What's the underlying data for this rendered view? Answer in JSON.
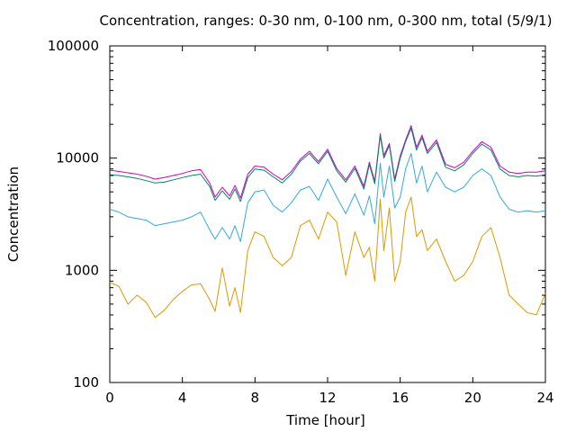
{
  "chart_data": {
    "type": "line",
    "title": "Concentration, ranges: 0-30 nm, 0-100 nm, 0-300 nm, total (5/9/1)",
    "xlabel": "Time [hour]",
    "ylabel": "Concentration",
    "xlim": [
      0,
      24
    ],
    "ylim": [
      100,
      100000
    ],
    "yscale": "log",
    "grid": false,
    "legend": "none",
    "xticks": [
      0,
      4,
      8,
      12,
      16,
      20,
      24
    ],
    "xtick_labels": [
      "0",
      "4",
      "8",
      "12",
      "16",
      "20",
      "24"
    ],
    "yticks": [
      100,
      1000,
      10000,
      100000
    ],
    "ytick_labels": [
      "100",
      "1000",
      "10000",
      "100000"
    ],
    "x": [
      0,
      0.5,
      1,
      1.5,
      2,
      2.5,
      3,
      3.5,
      4,
      4.5,
      5,
      5.5,
      5.8,
      6.2,
      6.6,
      6.9,
      7.2,
      7.6,
      8,
      8.5,
      9,
      9.5,
      10,
      10.5,
      11,
      11.5,
      12,
      12.5,
      13,
      13.5,
      14,
      14.3,
      14.6,
      14.9,
      15.1,
      15.4,
      15.7,
      16,
      16.3,
      16.6,
      16.9,
      17.2,
      17.5,
      18,
      18.5,
      19,
      19.5,
      20,
      20.5,
      21,
      21.5,
      22,
      22.5,
      23,
      23.5,
      24
    ],
    "series": [
      {
        "color": "#cc00cc",
        "values": [
          7800,
          7600,
          7400,
          7200,
          6900,
          6500,
          6700,
          7000,
          7300,
          7700,
          7900,
          6000,
          4500,
          5500,
          4600,
          5700,
          4400,
          7200,
          8500,
          8300,
          7200,
          6400,
          7600,
          9800,
          11500,
          9300,
          12000,
          8100,
          6400,
          8500,
          5600,
          9200,
          6200,
          16500,
          10500,
          13500,
          6500,
          10500,
          14500,
          19500,
          12500,
          16000,
          11500,
          14500,
          8800,
          8200,
          9200,
          11500,
          14000,
          12500,
          8500,
          7500,
          7300,
          7500,
          7500,
          7700
        ]
      },
      {
        "color": "#00885a",
        "values": [
          7100,
          7000,
          6800,
          6600,
          6300,
          6000,
          6100,
          6400,
          6700,
          7000,
          7200,
          5600,
          4200,
          5100,
          4300,
          5300,
          4100,
          6700,
          8000,
          7800,
          6800,
          6000,
          7200,
          9400,
          11000,
          8900,
          11500,
          7700,
          6100,
          8100,
          5300,
          8800,
          5900,
          15800,
          10000,
          13000,
          6200,
          10000,
          14000,
          18500,
          11800,
          15200,
          11000,
          13800,
          8300,
          7700,
          8700,
          11000,
          13300,
          11800,
          8000,
          7000,
          6800,
          7000,
          6900,
          7100
        ]
      },
      {
        "color": "#33aadd",
        "values": [
          3500,
          3300,
          3000,
          2900,
          2800,
          2500,
          2600,
          2700,
          2800,
          3000,
          3300,
          2300,
          1900,
          2400,
          1900,
          2500,
          1800,
          4000,
          5000,
          5200,
          3800,
          3300,
          4000,
          5200,
          5600,
          4200,
          6500,
          4500,
          3200,
          4800,
          3100,
          4600,
          2600,
          9000,
          4500,
          8500,
          3600,
          4500,
          8000,
          11000,
          6000,
          8500,
          5000,
          7500,
          5500,
          5000,
          5500,
          7000,
          8000,
          7000,
          4500,
          3500,
          3300,
          3400,
          3300,
          3400
        ]
      },
      {
        "color": "#dd9900",
        "values": [
          780,
          720,
          500,
          600,
          520,
          380,
          440,
          550,
          650,
          740,
          760,
          550,
          430,
          1050,
          480,
          700,
          420,
          1500,
          2200,
          2000,
          1300,
          1100,
          1300,
          2500,
          2800,
          1900,
          3300,
          2700,
          900,
          2200,
          1300,
          1600,
          800,
          4300,
          1500,
          3600,
          800,
          1200,
          3300,
          4500,
          2000,
          2300,
          1500,
          1900,
          1200,
          800,
          900,
          1200,
          2000,
          2400,
          1300,
          600,
          500,
          420,
          400,
          620
        ]
      }
    ]
  }
}
